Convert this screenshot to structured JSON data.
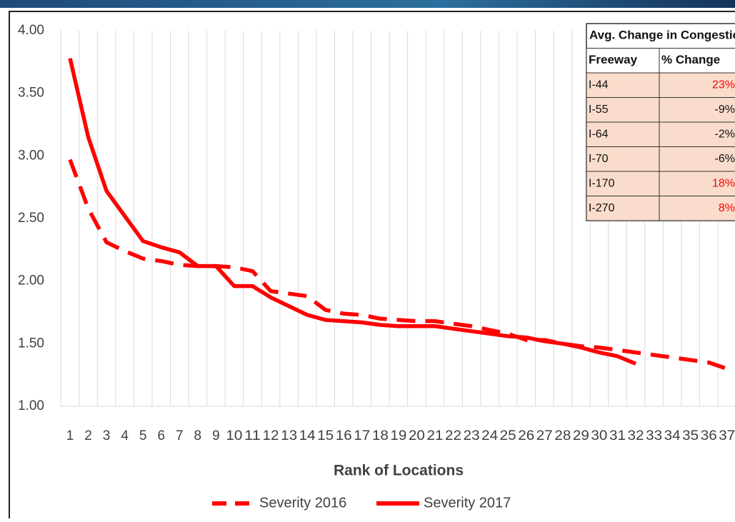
{
  "chart_data": {
    "type": "line",
    "x_label": "Rank of Locations",
    "categories": [
      "1",
      "2",
      "3",
      "4",
      "5",
      "6",
      "7",
      "8",
      "9",
      "10",
      "11",
      "12",
      "13",
      "14",
      "15",
      "16",
      "17",
      "18",
      "19",
      "20",
      "21",
      "22",
      "23",
      "24",
      "25",
      "26",
      "27",
      "28",
      "29",
      "30",
      "31",
      "32",
      "33",
      "34",
      "35",
      "36",
      "37"
    ],
    "series": [
      {
        "name": "Severity 2016",
        "color": "#ff0000",
        "dashed": true,
        "values": [
          2.97,
          2.58,
          2.31,
          2.24,
          2.18,
          2.16,
          2.13,
          2.12,
          2.12,
          2.11,
          2.08,
          1.92,
          1.9,
          1.88,
          1.77,
          1.74,
          1.73,
          1.7,
          1.69,
          1.68,
          1.68,
          1.66,
          1.64,
          1.61,
          1.58,
          1.53,
          1.53,
          1.5,
          1.48,
          1.47,
          1.45,
          1.43,
          1.41,
          1.39,
          1.37,
          1.35,
          1.3
        ]
      },
      {
        "name": "Severity 2017",
        "color": "#ff0000",
        "dashed": false,
        "values": [
          3.78,
          3.15,
          2.72,
          2.52,
          2.32,
          2.27,
          2.23,
          2.12,
          2.12,
          1.96,
          1.96,
          1.87,
          1.8,
          1.73,
          1.69,
          1.68,
          1.67,
          1.65,
          1.64,
          1.64,
          1.64,
          1.62,
          1.6,
          1.58,
          1.56,
          1.55,
          1.52,
          1.5,
          1.47,
          1.43,
          1.4,
          1.34,
          null,
          null,
          null,
          null,
          null
        ]
      }
    ],
    "ylim": [
      1,
      4
    ],
    "yticks": [
      {
        "value": 1,
        "label": "1.00"
      },
      {
        "value": 1.5,
        "label": "1.50"
      },
      {
        "value": 2,
        "label": "2.00"
      },
      {
        "value": 2.5,
        "label": "2.50"
      },
      {
        "value": 3,
        "label": "3.00"
      },
      {
        "value": 3.5,
        "label": "3.50"
      },
      {
        "value": 4,
        "label": "4.00"
      }
    ],
    "grid": false,
    "category_grid": true,
    "legend": "bottom"
  },
  "table": {
    "title": "Avg. Change in Congestion",
    "header": [
      "Freeway",
      "% Change"
    ],
    "rows": [
      [
        "I-44",
        "23%"
      ],
      [
        "I-55",
        "-9%"
      ],
      [
        "I-64",
        "-2%"
      ],
      [
        "I-70",
        "-6%"
      ],
      [
        "I-170",
        "18%"
      ],
      [
        "I-270",
        "8%"
      ]
    ],
    "highlight_color": "#ff0000"
  }
}
